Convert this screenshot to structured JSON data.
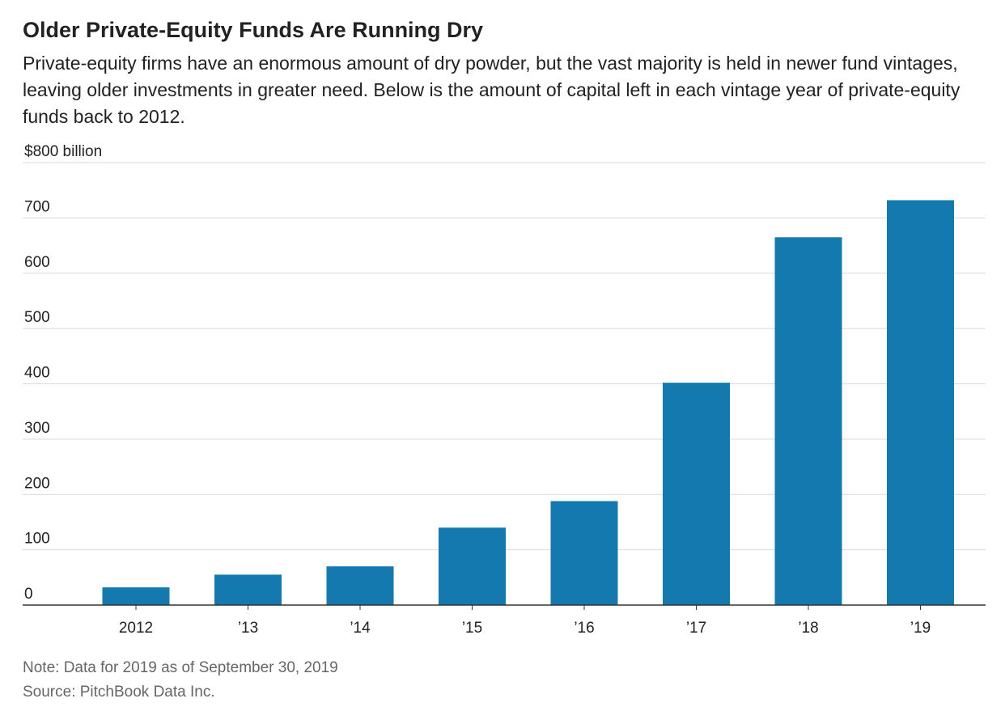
{
  "title": "Older Private-Equity Funds Are Running Dry",
  "subtitle": "Private-equity firms have an enormous amount of dry powder, but the vast majority is held in newer fund vintages, leaving older investments in greater need. Below is the amount of capital left in each vintage year of private-equity funds back to 2012.",
  "note": "Note: Data for 2019 as of September 30, 2019",
  "source": "Source: PitchBook Data Inc.",
  "chart_data": {
    "type": "bar",
    "categories": [
      "2012",
      "’13",
      "’14",
      "’15",
      "’16",
      "’17",
      "’18",
      "’19"
    ],
    "values": [
      32,
      55,
      70,
      140,
      188,
      402,
      665,
      732
    ],
    "ylim": [
      0,
      800
    ],
    "yticks": [
      0,
      100,
      200,
      300,
      400,
      500,
      600,
      700,
      800
    ],
    "ytick_labels": [
      "0",
      "100",
      "200",
      "300",
      "400",
      "500",
      "600",
      "700",
      "$800 billion"
    ],
    "grid": true,
    "colors": {
      "bar": "#1479ae",
      "grid": "#d9d9d9",
      "axis": "#333333"
    }
  }
}
